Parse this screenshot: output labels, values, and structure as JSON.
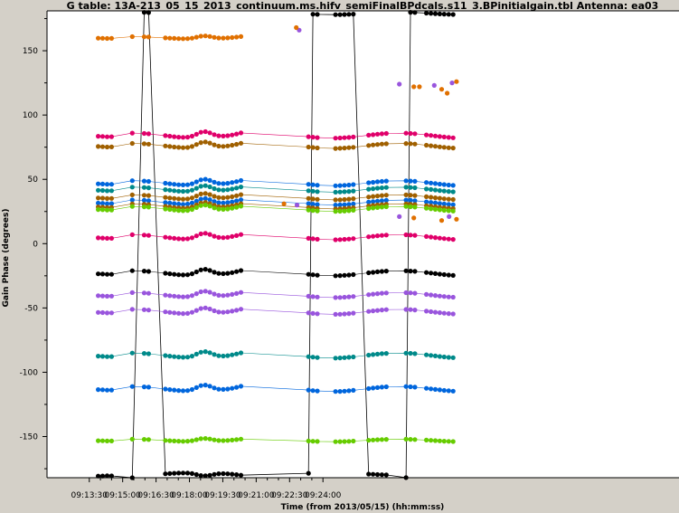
{
  "chart_data": {
    "type": "scatter",
    "title": "G table: 13A-213_05_15_2013_continuum.ms.hifv_semiFinalBPdcals.s11_3.BPinitialgain.tbl   Antenna: ea03",
    "xlabel": "Time (from 2013/05/15) (hh:mm:ss)",
    "ylabel": "Gain Phase (degrees)",
    "xlim_seconds": [
      33096,
      34800
    ],
    "ylim": [
      -182,
      181
    ],
    "x_ticks": [
      "09:13:30",
      "09:15:00",
      "09:16:30",
      "09:18:00",
      "09:19:30",
      "09:21:00",
      "09:22:30",
      "09:24:00"
    ],
    "y_ticks": [
      -150,
      -100,
      -50,
      0,
      50,
      100,
      150
    ],
    "grid": false,
    "scans_seconds": [
      [
        33234,
        33280
      ],
      [
        33326,
        33335
      ],
      [
        33358,
        33379
      ],
      [
        33415,
        33622
      ],
      [
        33801,
        33829
      ],
      [
        33874,
        33932
      ],
      [
        33963,
        34020
      ],
      [
        34064,
        34097
      ],
      [
        34119,
        34192
      ]
    ],
    "gaps_seconds": [
      [
        33648,
        33769
      ]
    ],
    "series": [
      {
        "color": "#000000",
        "level": 179,
        "wrap": true
      },
      {
        "color": "#e07000",
        "level": 160,
        "stop": 33770
      },
      {
        "color": "#e0006a",
        "level": 84
      },
      {
        "color": "#a06000",
        "level": 76
      },
      {
        "color": "#0066dd",
        "level": 47
      },
      {
        "color": "#008a8a",
        "level": 42
      },
      {
        "color": "#a06000",
        "level": 36
      },
      {
        "color": "#0066dd",
        "level": 32
      },
      {
        "color": "#a06000",
        "level": 29
      },
      {
        "color": "#66cc00",
        "level": 27
      },
      {
        "color": "#e0006a",
        "level": 5
      },
      {
        "color": "#000000",
        "level": -23
      },
      {
        "color": "#9955dd",
        "level": -40
      },
      {
        "color": "#9955dd",
        "level": -53
      },
      {
        "color": "#008a8a",
        "level": -87
      },
      {
        "color": "#0066dd",
        "level": -113
      },
      {
        "color": "#66cc00",
        "level": -153
      }
    ],
    "scattered_points": [
      {
        "color": "#9955dd",
        "x": 33776,
        "y": 166
      },
      {
        "color": "#e07000",
        "x": 33768,
        "y": 168
      },
      {
        "color": "#9955dd",
        "x": 34046,
        "y": 124
      },
      {
        "color": "#e07000",
        "x": 34085,
        "y": 122
      },
      {
        "color": "#e07000",
        "x": 34100,
        "y": 122
      },
      {
        "color": "#9955dd",
        "x": 34140,
        "y": 123
      },
      {
        "color": "#e07000",
        "x": 34160,
        "y": 120
      },
      {
        "color": "#e07000",
        "x": 34175,
        "y": 117
      },
      {
        "color": "#9955dd",
        "x": 34188,
        "y": 125
      },
      {
        "color": "#e07000",
        "x": 34200,
        "y": 126
      },
      {
        "color": "#e07000",
        "x": 33735,
        "y": 31
      },
      {
        "color": "#9955dd",
        "x": 33770,
        "y": 30
      },
      {
        "color": "#9955dd",
        "x": 34046,
        "y": 21
      },
      {
        "color": "#e07000",
        "x": 34085,
        "y": 20
      },
      {
        "color": "#e07000",
        "x": 34160,
        "y": 18
      },
      {
        "color": "#9955dd",
        "x": 34180,
        "y": 21
      },
      {
        "color": "#e07000",
        "x": 34200,
        "y": 19
      }
    ]
  }
}
